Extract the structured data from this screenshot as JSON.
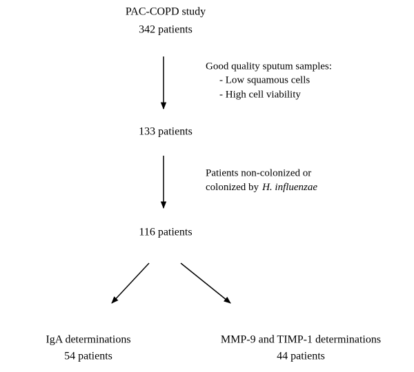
{
  "nodes": [
    {
      "lines": [
        "PAC-COPD study",
        "342 patients"
      ]
    },
    {
      "lines": [
        "133 patients"
      ]
    },
    {
      "lines": [
        "116 patients"
      ]
    },
    {
      "lines": [
        "IgA determinations",
        "54 patients"
      ]
    },
    {
      "lines": [
        "MMP-9 and TIMP-1 determinations",
        "44 patients"
      ]
    }
  ],
  "criteria": [
    {
      "heading": "Good quality sputum samples:",
      "items": [
        "- Low squamous cells",
        "- High cell viability"
      ]
    },
    {
      "heading": "Patients non-colonized or",
      "line2": "colonized by",
      "organism": "H. influenzae"
    }
  ]
}
